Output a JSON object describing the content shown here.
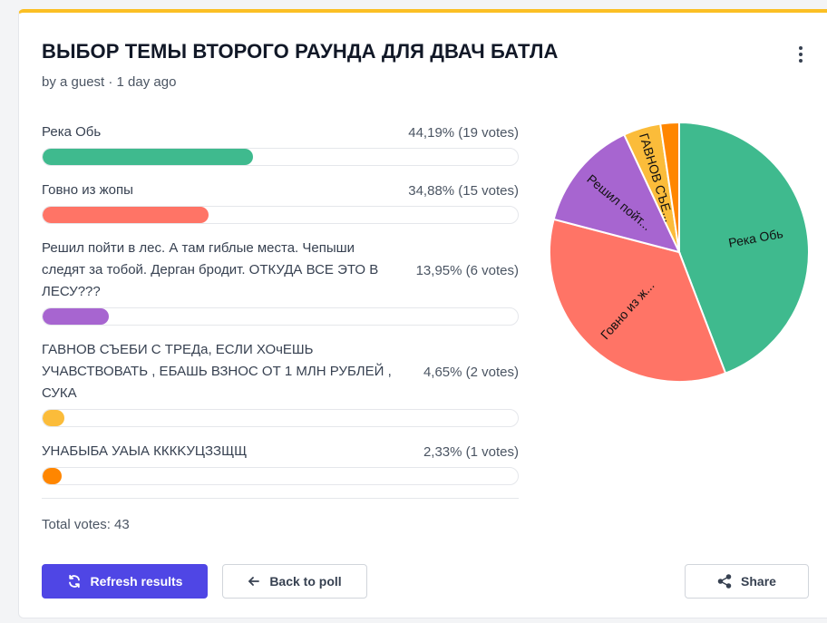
{
  "poll": {
    "title": "ВЫБОР ТЕМЫ ВТОРОГО РАУНДА ДЛЯ ДВАЧ БАТЛА",
    "subtitle": "by a guest · 1 day ago",
    "total": "Total votes: 43"
  },
  "options": [
    {
      "label": "Река Обь",
      "stats": "44,19% (19 votes)",
      "percent": 44.19,
      "color": "#3fba8e"
    },
    {
      "label": "Говно из жопы",
      "stats": "34,88% (15 votes)",
      "percent": 34.88,
      "color": "#ff7466"
    },
    {
      "label": "Решил пойти в лес. А там гиблые места. Чепыши следят за тобой. Дерган бродит. ОТКУДА ВСЕ ЭТО В ЛЕСУ???",
      "stats": "13,95% (6 votes)",
      "percent": 13.95,
      "color": "#a765d0"
    },
    {
      "label": "ГАВНОВ СЪЕБИ С ТРЕДа, ЕСЛИ ХОчЕШЬ УЧАВСТВОВАТЬ , ЕБАШЬ ВЗНОС ОТ 1 МЛН РУБЛЕЙ , СУКА",
      "stats": "4,65% (2 votes)",
      "percent": 4.65,
      "color": "#fbbc3a"
    },
    {
      "label": "УНАБЫБА УАЫА КККKУЦЗЗЩЩ",
      "stats": "2,33% (1 votes)",
      "percent": 2.33,
      "color": "#ff8600"
    }
  ],
  "buttons": {
    "refresh": "Refresh results",
    "back": "Back to poll",
    "share": "Share"
  },
  "chart_data": {
    "type": "pie",
    "categories": [
      "Река Обь",
      "Говно из жопы",
      "Решил пойти в лес. А там гиблые места. Чепыши следят за тобой. Дерган бродит. ОТКУДА ВСЕ ЭТО В ЛЕСУ???",
      "ГАВНОВ СЪЕБИ С ТРЕДа, ЕСЛИ ХОчЕШЬ УЧАВСТВОВАТЬ , ЕБАШЬ ВЗНОС ОТ 1 МЛН РУБЛЕЙ , СУКА",
      "УНАБЫБА УАЫА КККKУЦЗЗЩЩ"
    ],
    "values": [
      19,
      15,
      6,
      2,
      1
    ],
    "slice_labels": [
      "Река Обь",
      "Говно из ж...",
      "Решил пойт...",
      "ГАВНОВ СЪЕ...",
      ""
    ],
    "colors": [
      "#3fba8e",
      "#ff7466",
      "#a765d0",
      "#fbbc3a",
      "#ff8600"
    ]
  },
  "icons": {
    "refresh": "refresh-icon",
    "back": "arrow-left-icon",
    "share": "share-icon",
    "menu": "kebab-menu-icon"
  }
}
